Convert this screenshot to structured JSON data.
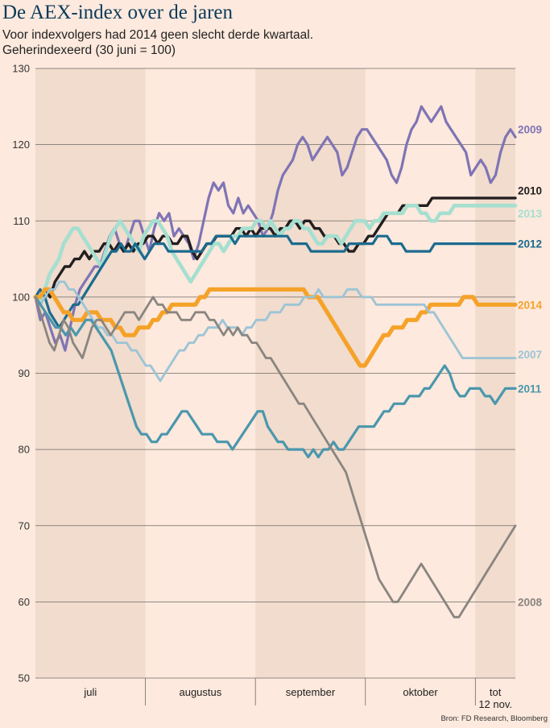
{
  "title": "De AEX-index over de jaren",
  "subtitle": "Voor indexvolgers had 2014 geen slecht derde kwartaal.",
  "subtitle2": "Geherindexeerd (30 juni = 100)",
  "source": "Bron: FD Research, Bloomberg",
  "chart_data": {
    "type": "line",
    "ylim": [
      50,
      130
    ],
    "yticks": [
      50,
      60,
      70,
      80,
      90,
      100,
      110,
      120,
      130
    ],
    "grid": true,
    "x_range": [
      0,
      96
    ],
    "months": [
      {
        "label": "juli",
        "start": 0,
        "end": 22,
        "shaded": true
      },
      {
        "label": "augustus",
        "start": 22,
        "end": 44,
        "shaded": false
      },
      {
        "label": "september",
        "start": 44,
        "end": 66,
        "shaded": true
      },
      {
        "label": "oktober",
        "start": 66,
        "end": 88,
        "shaded": false
      },
      {
        "label": "tot\n12 nov.",
        "start": 88,
        "end": 96,
        "shaded": true
      }
    ],
    "series": [
      {
        "name": "2009",
        "color": "#7f74b5",
        "width": 3.2,
        "label_y": 122,
        "values": [
          100,
          97,
          98,
          96,
          94,
          95,
          93,
          96,
          99,
          101,
          102,
          103,
          104,
          104,
          106,
          108,
          109,
          107,
          106,
          108,
          110,
          110,
          108,
          106,
          109,
          111,
          110,
          111,
          108,
          109,
          108,
          107,
          105,
          107,
          110,
          113,
          115,
          114,
          115,
          112,
          111,
          113,
          111,
          112,
          111,
          110,
          108,
          109,
          111,
          114,
          116,
          117,
          118,
          120,
          121,
          120,
          118,
          119,
          120,
          121,
          120,
          119,
          116,
          117,
          119,
          121,
          122,
          122,
          121,
          120,
          119,
          118,
          116,
          115,
          117,
          120,
          122,
          123,
          125,
          124,
          123,
          124,
          125,
          123,
          122,
          121,
          120,
          119,
          116,
          117,
          118,
          117,
          115,
          116,
          119,
          121,
          122,
          121
        ]
      },
      {
        "name": "2010",
        "color": "#231f20",
        "width": 3.4,
        "label_y": 114,
        "values": [
          100,
          100,
          101,
          100,
          102,
          103,
          104,
          104,
          105,
          105,
          106,
          105,
          106,
          106,
          107,
          107,
          106,
          107,
          106,
          107,
          106,
          107,
          107,
          108,
          108,
          107,
          108,
          108,
          107,
          107,
          108,
          108,
          106,
          105,
          106,
          107,
          107,
          108,
          108,
          108,
          108,
          109,
          109,
          108,
          109,
          108,
          109,
          109,
          109,
          108,
          109,
          109,
          110,
          110,
          109,
          110,
          110,
          109,
          109,
          108,
          108,
          108,
          107,
          107,
          106,
          106,
          107,
          107,
          108,
          108,
          109,
          110,
          111,
          111,
          111,
          112,
          112,
          112,
          112,
          112,
          112,
          113,
          113,
          113,
          113,
          113,
          113,
          113,
          113,
          113,
          113,
          113,
          113,
          113,
          113,
          113,
          113,
          113,
          113
        ]
      },
      {
        "name": "2013",
        "color": "#a5dfd0",
        "width": 4.6,
        "label_y": 111,
        "values": [
          100,
          99,
          101,
          103,
          104,
          105,
          107,
          108,
          109,
          109,
          108,
          107,
          106,
          105,
          104,
          106,
          108,
          109,
          110,
          109,
          108,
          107,
          106,
          108,
          109,
          110,
          110,
          109,
          108,
          106,
          105,
          104,
          103,
          102,
          103,
          104,
          105,
          106,
          107,
          107,
          106,
          107,
          108,
          108,
          109,
          109,
          109,
          110,
          110,
          109,
          110,
          109,
          108,
          109,
          109,
          110,
          110,
          109,
          109,
          108,
          107,
          107,
          108,
          108,
          108,
          107,
          108,
          109,
          110,
          110,
          110,
          109,
          110,
          110,
          111,
          111,
          111,
          111,
          111,
          112,
          112,
          112,
          111,
          111,
          110,
          110,
          111,
          111,
          111,
          112,
          112,
          112,
          112,
          112,
          112,
          112,
          112,
          112,
          112,
          112,
          112,
          112,
          112
        ]
      },
      {
        "name": "2012",
        "color": "#1b6b8f",
        "width": 3.2,
        "label_y": 107,
        "values": [
          100,
          101,
          100,
          98,
          97,
          96,
          97,
          98,
          99,
          99,
          100,
          101,
          102,
          103,
          104,
          105,
          106,
          106,
          107,
          106,
          106,
          107,
          106,
          105,
          106,
          107,
          107,
          107,
          106,
          106,
          106,
          106,
          106,
          106,
          106,
          106,
          107,
          107,
          108,
          108,
          108,
          108,
          107,
          108,
          108,
          108,
          108,
          108,
          108,
          108,
          108,
          108,
          108,
          108,
          107,
          107,
          107,
          107,
          106,
          106,
          106,
          106,
          106,
          106,
          106,
          106,
          107,
          107,
          107,
          107,
          107,
          107,
          108,
          108,
          108,
          107,
          107,
          107,
          106,
          106,
          106,
          106,
          106,
          106,
          107,
          107,
          107,
          107,
          107,
          107,
          107,
          107,
          107,
          107,
          107,
          107,
          107,
          107,
          107,
          107,
          107,
          107
        ]
      },
      {
        "name": "2014",
        "color": "#f5a229",
        "width": 5.2,
        "label_y": 99,
        "values": [
          100,
          100,
          101,
          101,
          100,
          99,
          98,
          98,
          97,
          97,
          97,
          98,
          98,
          98,
          97,
          97,
          97,
          96,
          96,
          95,
          95,
          95,
          96,
          96,
          96,
          97,
          97,
          98,
          98,
          99,
          99,
          99,
          99,
          99,
          99,
          100,
          100,
          101,
          101,
          101,
          101,
          101,
          101,
          101,
          101,
          101,
          101,
          101,
          101,
          101,
          101,
          101,
          101,
          101,
          101,
          101,
          101,
          101,
          100,
          100,
          100,
          99,
          98,
          97,
          96,
          95,
          94,
          93,
          92,
          91,
          91,
          92,
          93,
          94,
          95,
          95,
          96,
          96,
          96,
          97,
          97,
          97,
          98,
          98,
          99,
          99,
          99,
          99,
          99,
          99,
          99,
          100,
          100,
          100,
          99,
          99,
          99,
          99,
          99,
          99,
          99,
          99,
          99
        ]
      },
      {
        "name": "2007",
        "color": "#9bc4d6",
        "width": 2.8,
        "label_y": 92.5,
        "values": [
          100,
          99,
          100,
          101,
          101,
          102,
          102,
          101,
          101,
          100,
          99,
          98,
          97,
          96,
          96,
          95,
          95,
          94,
          94,
          94,
          93,
          93,
          92,
          91,
          91,
          90,
          89,
          90,
          91,
          92,
          93,
          93,
          94,
          94,
          95,
          95,
          96,
          96,
          96,
          97,
          96,
          96,
          96,
          95,
          96,
          96,
          97,
          97,
          97,
          98,
          98,
          98,
          99,
          99,
          99,
          99,
          100,
          100,
          100,
          101,
          100,
          100,
          100,
          100,
          100,
          101,
          101,
          101,
          100,
          100,
          100,
          99,
          99,
          99,
          99,
          99,
          99,
          99,
          99,
          99,
          99,
          99,
          98,
          98,
          97,
          96,
          95,
          94,
          93,
          92,
          92,
          92,
          92,
          92,
          92,
          92,
          92,
          92,
          92,
          92,
          92
        ]
      },
      {
        "name": "2011",
        "color": "#4a97ad",
        "width": 3.2,
        "label_y": 88,
        "values": [
          100,
          99,
          98,
          97,
          96,
          96,
          95,
          96,
          95,
          96,
          97,
          97,
          96,
          95,
          94,
          93,
          91,
          89,
          87,
          85,
          83,
          82,
          82,
          81,
          81,
          82,
          82,
          83,
          84,
          85,
          85,
          84,
          83,
          82,
          82,
          82,
          81,
          81,
          81,
          80,
          81,
          82,
          83,
          84,
          85,
          85,
          83,
          82,
          81,
          81,
          80,
          80,
          80,
          80,
          79,
          80,
          79,
          80,
          80,
          81,
          80,
          80,
          81,
          82,
          83,
          83,
          83,
          83,
          84,
          85,
          85,
          86,
          86,
          86,
          87,
          87,
          87,
          88,
          88,
          89,
          90,
          91,
          90,
          88,
          87,
          87,
          88,
          88,
          88,
          87,
          87,
          86,
          87,
          88,
          88,
          88
        ]
      },
      {
        "name": "2008",
        "color": "#8a8580",
        "width": 2.8,
        "label_y": 60,
        "values": [
          100,
          98,
          96,
          94,
          93,
          95,
          97,
          96,
          94,
          93,
          92,
          94,
          96,
          97,
          97,
          96,
          95,
          96,
          97,
          98,
          98,
          98,
          97,
          98,
          99,
          100,
          99,
          99,
          98,
          98,
          98,
          97,
          97,
          97,
          98,
          98,
          98,
          97,
          97,
          96,
          95,
          96,
          95,
          96,
          95,
          95,
          94,
          94,
          93,
          92,
          92,
          91,
          90,
          89,
          88,
          87,
          86,
          86,
          85,
          84,
          83,
          82,
          81,
          80,
          79,
          78,
          77,
          75,
          73,
          71,
          69,
          67,
          65,
          63,
          62,
          61,
          60,
          60,
          61,
          62,
          63,
          64,
          65,
          64,
          63,
          62,
          61,
          60,
          59,
          58,
          58,
          59,
          60,
          61,
          62,
          63,
          64,
          65,
          66,
          67,
          68,
          69,
          70
        ]
      }
    ]
  }
}
